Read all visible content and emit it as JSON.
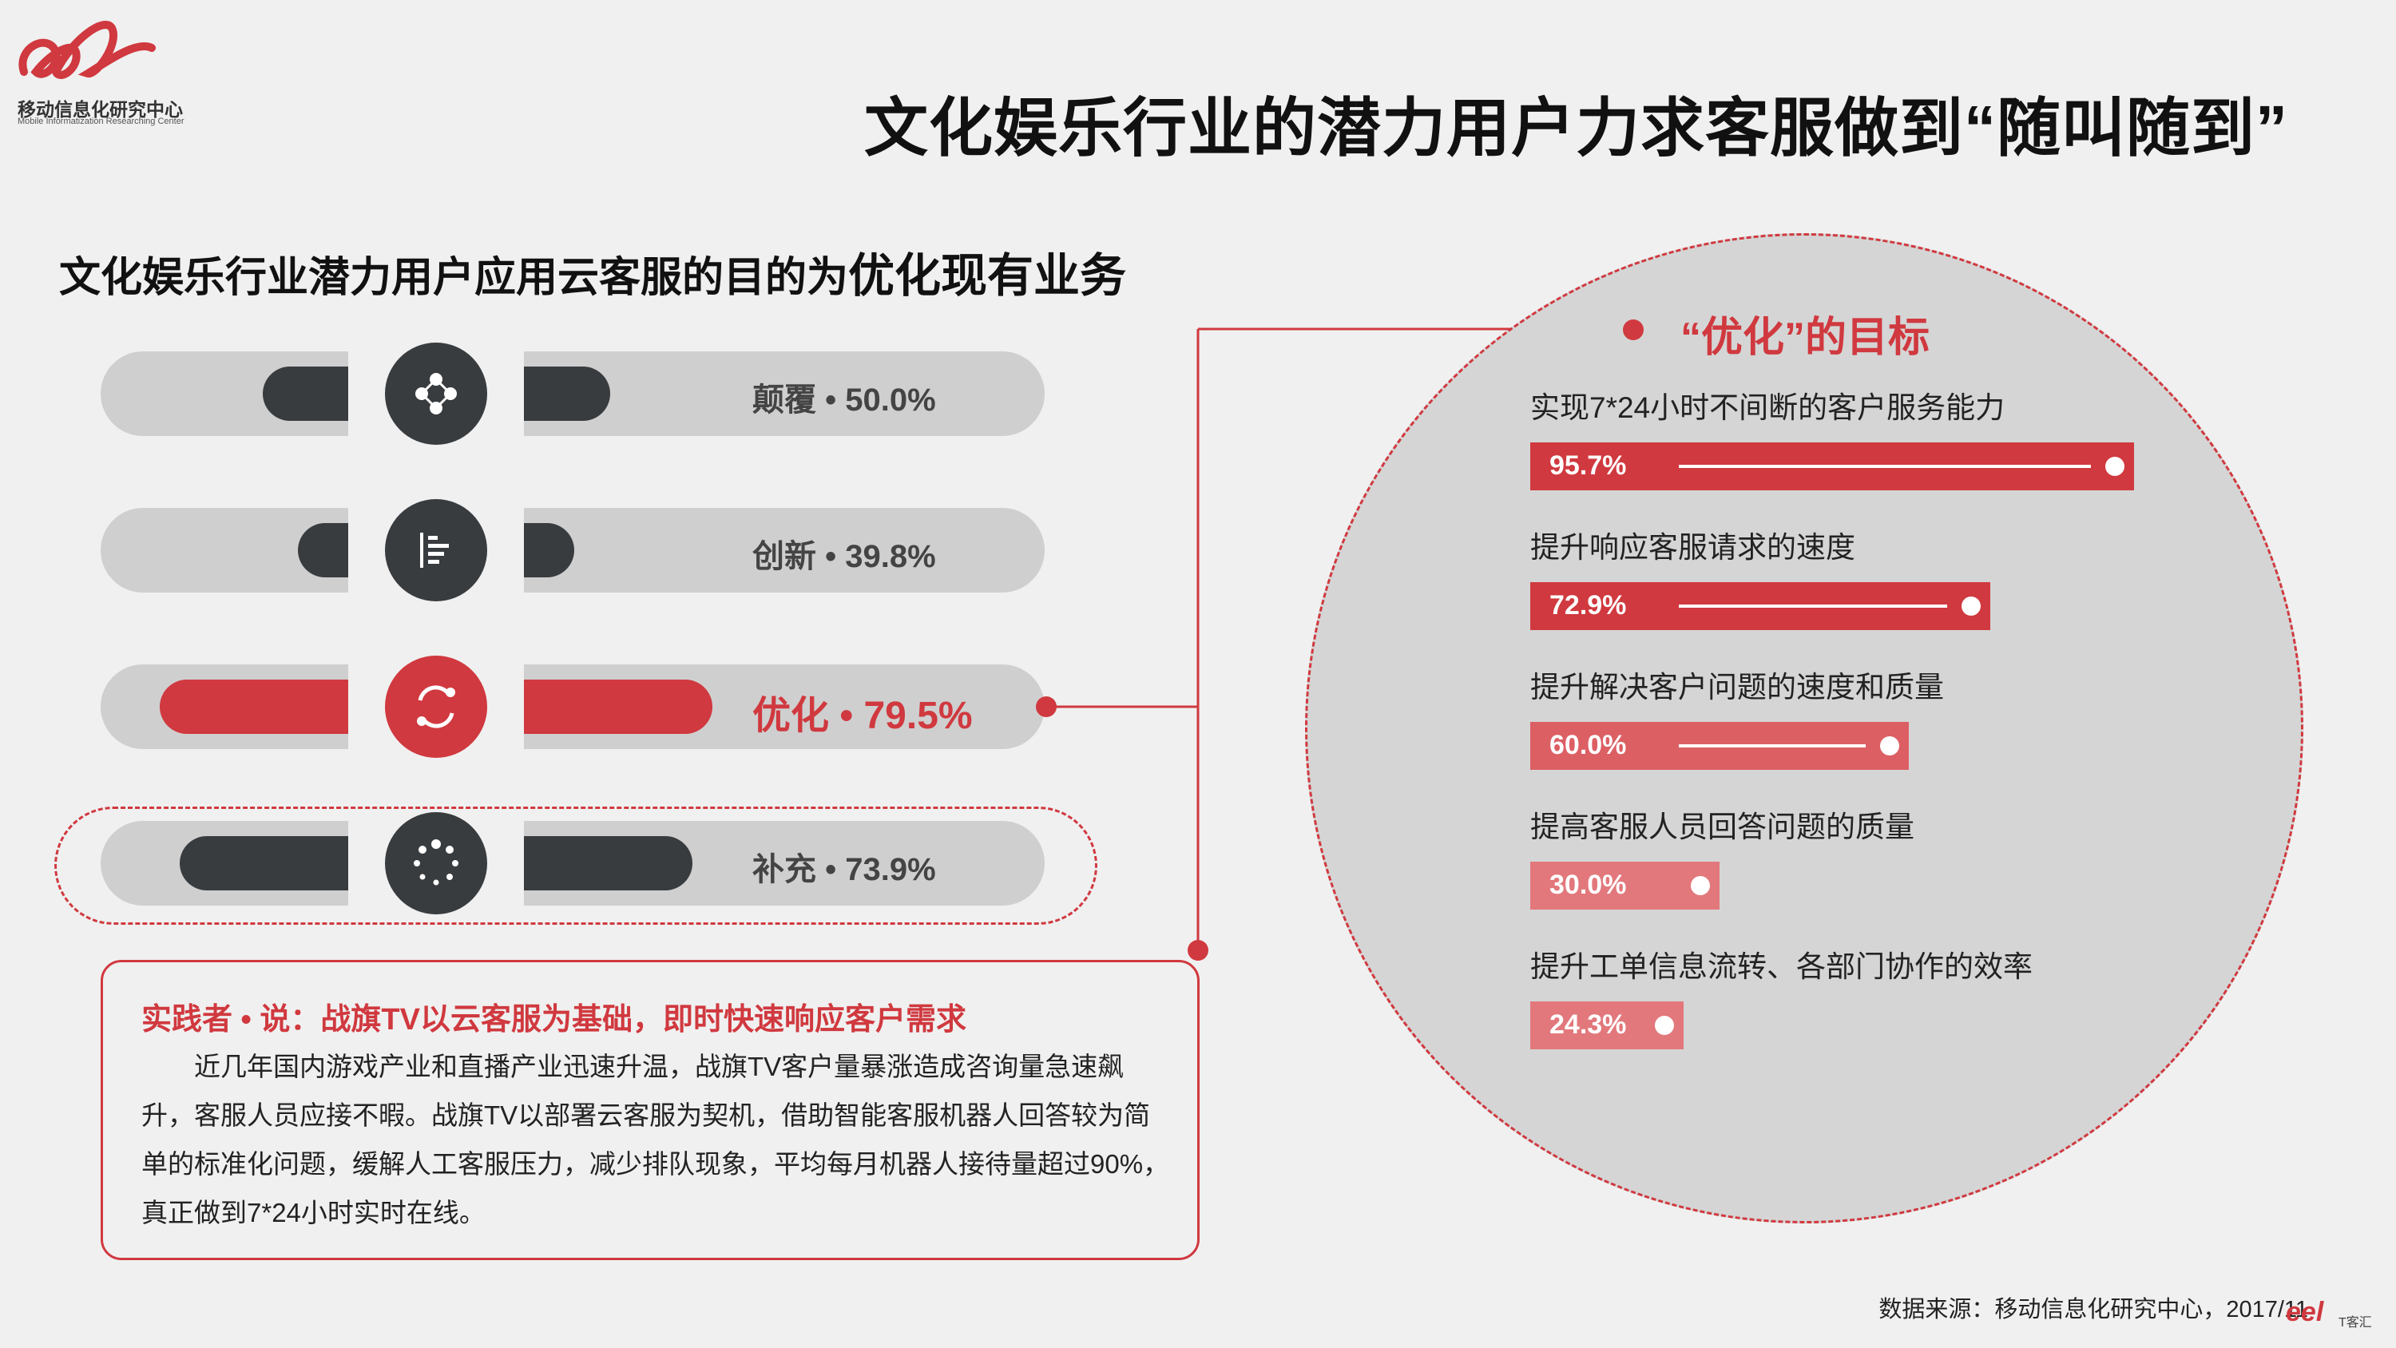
{
  "header": {
    "org_name": "移动信息化研究中心",
    "org_name_en": "Mobile Informatization Researching Center",
    "title": "文化娱乐行业的潜力用户力求客服做到“随叫随到”"
  },
  "subtitle": {
    "prefix": "文化娱乐行业潜力用户应用云客服的目的为",
    "highlight": "优化现有业务"
  },
  "colors": {
    "accent": "#d0393f",
    "dark": "#393c3f",
    "track": "#cfcfcf",
    "circle": "#d5d5d5"
  },
  "chart_data": [
    {
      "type": "bar",
      "categories": [
        "颠覆",
        "创新",
        "优化",
        "补充"
      ],
      "values": [
        50.0,
        39.8,
        79.5,
        73.9
      ],
      "labels": [
        "颠覆 • 50.0%",
        "创新 • 39.8%",
        "优化 • 79.5%",
        "补充 • 73.9%"
      ],
      "icons": [
        "nodes-icon",
        "bar-list-icon",
        "sync-arrows-icon",
        "loading-dots-icon"
      ],
      "highlight": "优化",
      "ylim": [
        0,
        100
      ]
    },
    {
      "type": "bar",
      "title": "“优化”的目标",
      "categories": [
        "实现7*24小时不间断的客户服务能力",
        "提升响应客服请求的速度",
        "提升解决客户问题的速度和质量",
        "提高客服人员回答问题的质量",
        "提升工单信息流转、各部门协作的效率"
      ],
      "values": [
        95.7,
        72.9,
        60.0,
        30.0,
        24.3
      ],
      "labels": [
        "95.7%",
        "72.9%",
        "60.0%",
        "30.0%",
        "24.3%"
      ],
      "colors": [
        "#d0393f",
        "#d0393f",
        "#dc5f64",
        "#e2787c",
        "#e2787c"
      ],
      "ylim": [
        0,
        100
      ]
    }
  ],
  "case": {
    "title": "实践者 • 说：战旗TV以云客服为基础，即时快速响应客户需求",
    "body": "近几年国内游戏产业和直播产业迅速升温，战旗TV客户量暴涨造成咨询量急速飙升，客服人员应接不暇。战旗TV以部署云客服为契机，借助智能客服机器人回答较为简单的标准化问题，缓解人工客服压力，减少排队现象，平均每月机器人接待量超过90%，真正做到7*24小时实时在线。"
  },
  "footer": {
    "source": "数据来源：移动信息化研究中心，2017/11",
    "mini_logo": "eel",
    "mini_logo_text": "T客汇"
  }
}
